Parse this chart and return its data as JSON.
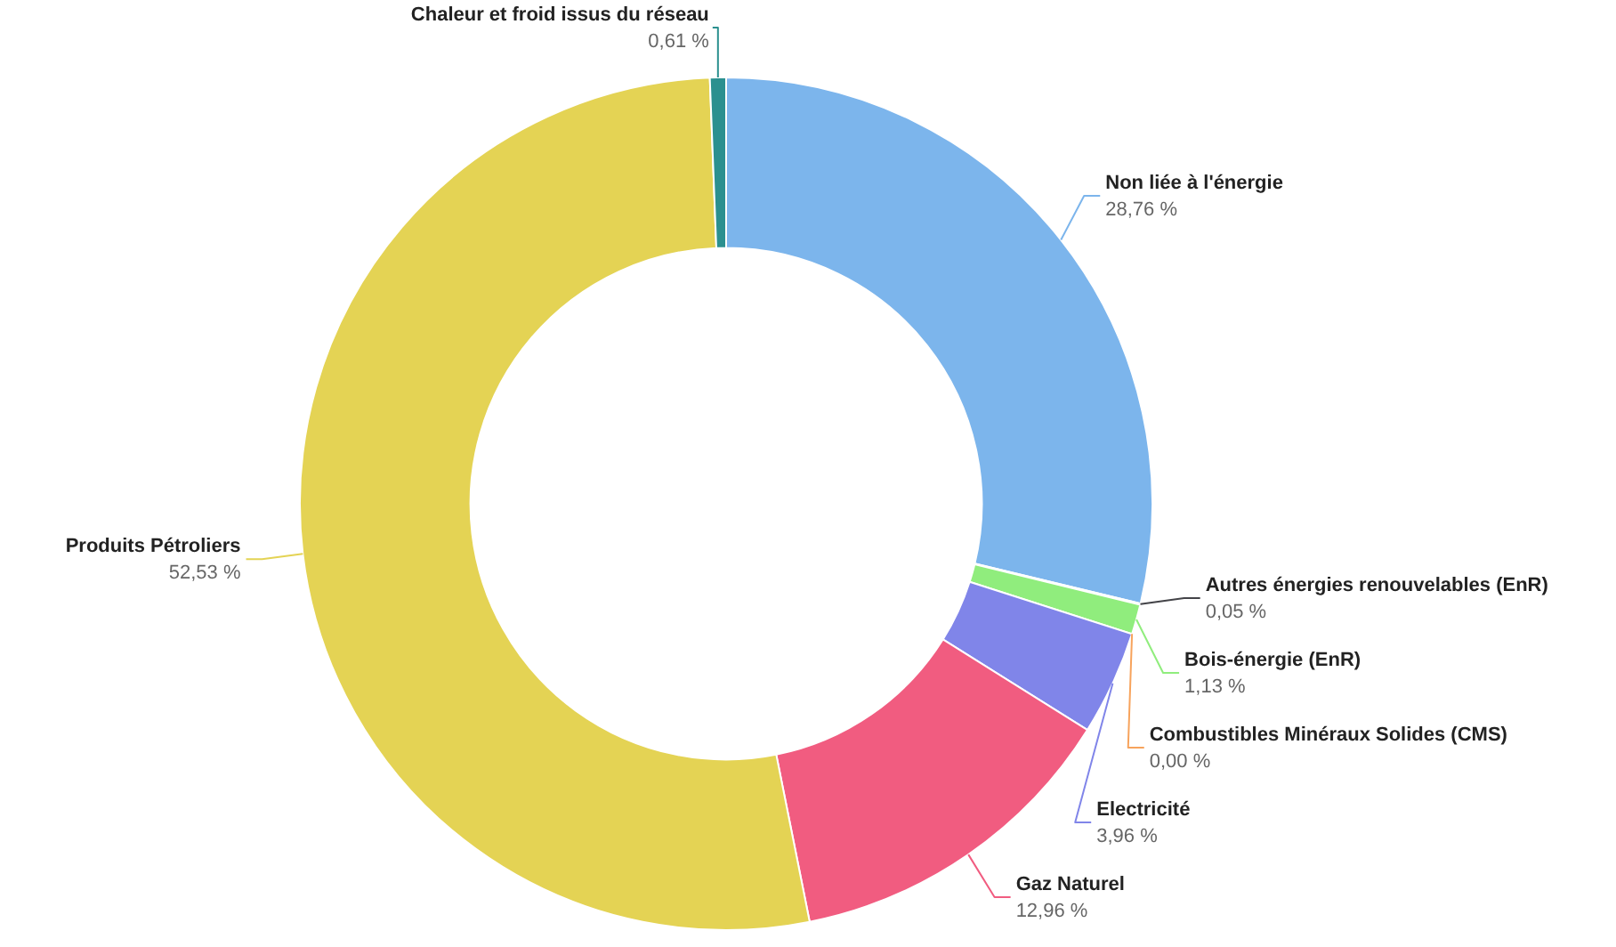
{
  "chart_data": {
    "type": "donut",
    "categories": [
      "Non liée à l'énergie",
      "Autres énergies renouvelables (EnR)",
      "Bois-énergie (EnR)",
      "Combustibles Minéraux Solides (CMS)",
      "Electricité",
      "Gaz Naturel",
      "Produits Pétroliers",
      "Chaleur et froid issus du réseau"
    ],
    "values": [
      28.76,
      0.05,
      1.13,
      0.0,
      3.96,
      12.96,
      52.53,
      0.61
    ],
    "value_labels": [
      "28,76 %",
      "0,05 %",
      "1,13 %",
      "0,00 %",
      "3,96 %",
      "12,96 %",
      "52,53 %",
      "0,61 %"
    ],
    "colors": [
      "#7cb5ec",
      "#434348",
      "#90ed7d",
      "#f7a35c",
      "#8085e9",
      "#f15c80",
      "#e4d354",
      "#2b908f"
    ],
    "legend": false
  }
}
